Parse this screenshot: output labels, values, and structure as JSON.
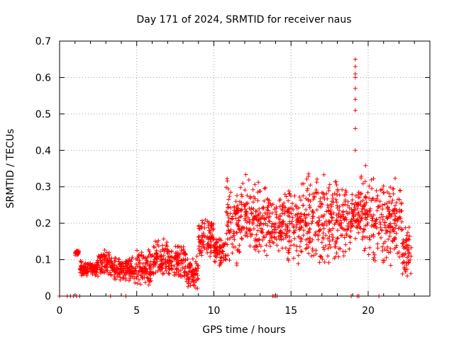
{
  "chart_data": {
    "type": "scatter",
    "title": "Day 171 of 2024, SRMTID for receiver naus",
    "xlabel": "GPS time / hours",
    "ylabel": "SRMTID / TECUs",
    "xlim": [
      0,
      24
    ],
    "ylim": [
      0,
      0.7
    ],
    "x_ticks": [
      "0",
      "5",
      "10",
      "15",
      "20"
    ],
    "y_ticks": [
      "0",
      "0.1",
      "0.2",
      "0.3",
      "0.4",
      "0.5",
      "0.6",
      "0.7"
    ],
    "grid": true,
    "marker": "+",
    "color": "#ff0000",
    "series": [
      {
        "name": "SRMTID",
        "segments": [
          {
            "start": 1.0,
            "end": 1.3,
            "min": 0.11,
            "max": 0.13
          },
          {
            "start": 1.3,
            "end": 2.5,
            "min": 0.05,
            "max": 0.1
          },
          {
            "start": 2.5,
            "end": 3.3,
            "min": 0.06,
            "max": 0.13
          },
          {
            "start": 3.3,
            "end": 4.5,
            "min": 0.04,
            "max": 0.11
          },
          {
            "start": 4.5,
            "end": 6.0,
            "min": 0.02,
            "max": 0.13
          },
          {
            "start": 6.0,
            "end": 7.0,
            "min": 0.04,
            "max": 0.16
          },
          {
            "start": 7.0,
            "end": 8.2,
            "min": 0.04,
            "max": 0.15
          },
          {
            "start": 8.2,
            "end": 9.0,
            "min": 0.02,
            "max": 0.11
          },
          {
            "start": 9.0,
            "end": 10.0,
            "min": 0.1,
            "max": 0.22
          },
          {
            "start": 10.0,
            "end": 10.8,
            "min": 0.08,
            "max": 0.17
          },
          {
            "start": 10.8,
            "end": 12.0,
            "min": 0.08,
            "max": 0.33
          },
          {
            "start": 12.0,
            "end": 13.5,
            "min": 0.1,
            "max": 0.34
          },
          {
            "start": 13.5,
            "end": 14.5,
            "min": 0.12,
            "max": 0.27
          },
          {
            "start": 14.5,
            "end": 16.0,
            "min": 0.08,
            "max": 0.32
          },
          {
            "start": 16.0,
            "end": 17.5,
            "min": 0.08,
            "max": 0.34
          },
          {
            "start": 17.5,
            "end": 19.0,
            "min": 0.09,
            "max": 0.32
          },
          {
            "start": 19.0,
            "end": 19.5,
            "min": 0.15,
            "max": 0.3
          },
          {
            "start": 19.5,
            "end": 20.3,
            "min": 0.09,
            "max": 0.38
          },
          {
            "start": 20.3,
            "end": 21.5,
            "min": 0.07,
            "max": 0.33
          },
          {
            "start": 21.5,
            "end": 22.2,
            "min": 0.1,
            "max": 0.34
          },
          {
            "start": 22.2,
            "end": 22.8,
            "min": 0.04,
            "max": 0.2
          }
        ],
        "spike": {
          "x": 19.17,
          "values": [
            0.4,
            0.46,
            0.51,
            0.54,
            0.57,
            0.6,
            0.61,
            0.63,
            0.65
          ]
        },
        "zero_points": [
          0.0,
          0.5,
          0.7,
          0.9,
          1.1,
          1.3,
          3.3,
          4.3,
          13.8,
          13.9,
          14.0,
          14.1,
          18.9,
          19.3,
          19.4,
          20.7
        ]
      }
    ]
  }
}
